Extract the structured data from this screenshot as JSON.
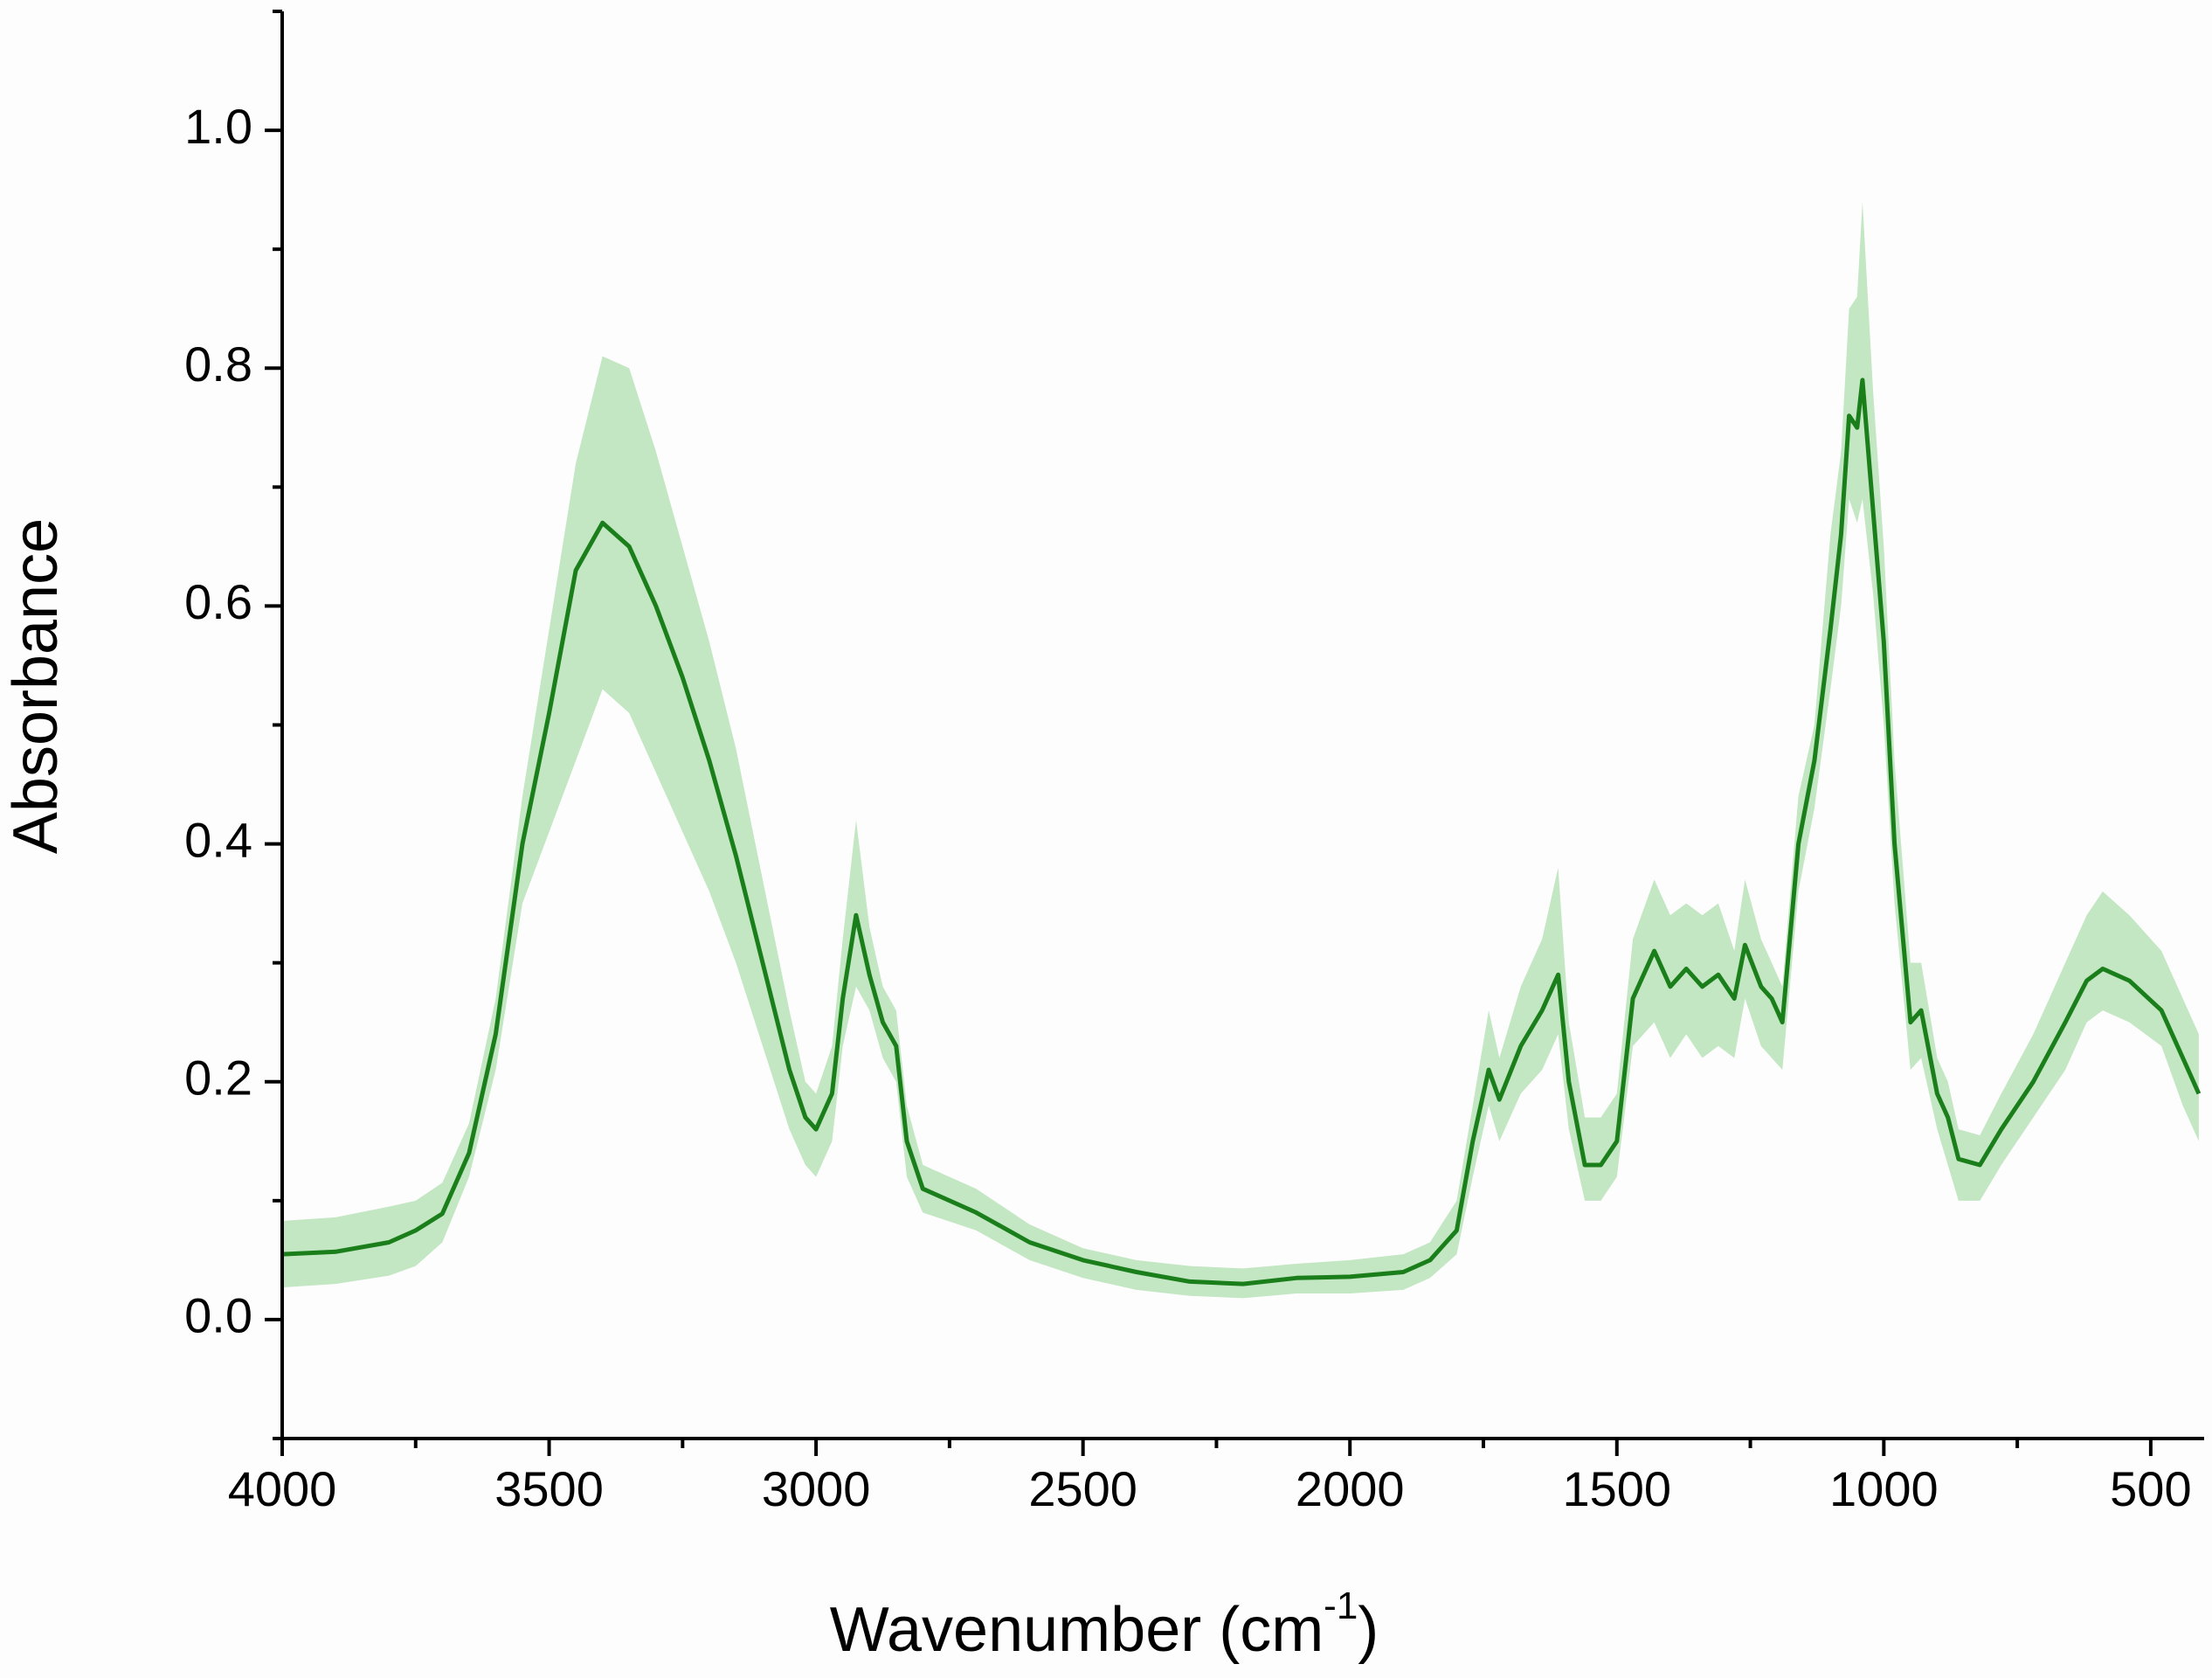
{
  "chart_data": {
    "type": "line",
    "x_label": [
      "Wavenumber (cm",
      "-1",
      ")"
    ],
    "y_label": "Absorbance",
    "xlim": [
      4000,
      400
    ],
    "ylim": [
      -0.1,
      1.1
    ],
    "xticks": [
      4000,
      3500,
      3000,
      2500,
      2000,
      1500,
      1000,
      500
    ],
    "xminor_ticks": [
      3750,
      3250,
      2750,
      2250,
      1750,
      1250,
      750
    ],
    "yticks": [
      {
        "value": 0,
        "label": "0.0"
      },
      0.2,
      0.4,
      0.6,
      0.8,
      {
        "value": 1,
        "label": "1.0"
      }
    ],
    "yminor_ticks": [
      -0.1,
      0.1,
      0.3,
      0.5,
      0.7,
      0.9,
      1.1
    ],
    "grid": false,
    "x": [
      4000,
      3900,
      3800,
      3750,
      3700,
      3650,
      3600,
      3550,
      3500,
      3450,
      3400,
      3350,
      3300,
      3250,
      3200,
      3150,
      3100,
      3050,
      3020,
      3000,
      2970,
      2950,
      2925,
      2900,
      2875,
      2850,
      2830,
      2800,
      2700,
      2600,
      2500,
      2400,
      2300,
      2200,
      2100,
      2000,
      1900,
      1850,
      1800,
      1770,
      1740,
      1720,
      1680,
      1640,
      1610,
      1590,
      1560,
      1530,
      1500,
      1470,
      1430,
      1400,
      1370,
      1340,
      1310,
      1280,
      1260,
      1230,
      1210,
      1190,
      1160,
      1130,
      1100,
      1080,
      1065,
      1050,
      1040,
      1020,
      1000,
      980,
      950,
      930,
      900,
      880,
      860,
      820,
      780,
      720,
      660,
      620,
      590,
      540,
      480,
      440,
      410
    ],
    "series": [
      {
        "color": "#1a7f1a",
        "band_color": "#c3e6c3",
        "values": [
          0.055,
          0.057,
          0.065,
          0.075,
          0.089,
          0.14,
          0.24,
          0.4,
          0.51,
          0.63,
          0.67,
          0.65,
          0.6,
          0.54,
          0.47,
          0.39,
          0.3,
          0.21,
          0.17,
          0.16,
          0.19,
          0.27,
          0.34,
          0.29,
          0.25,
          0.23,
          0.15,
          0.11,
          0.09,
          0.065,
          0.05,
          0.04,
          0.032,
          0.03,
          0.035,
          0.036,
          0.04,
          0.05,
          0.075,
          0.15,
          0.21,
          0.185,
          0.23,
          0.26,
          0.29,
          0.2,
          0.13,
          0.13,
          0.15,
          0.27,
          0.31,
          0.28,
          0.295,
          0.28,
          0.29,
          0.27,
          0.315,
          0.28,
          0.27,
          0.25,
          0.4,
          0.47,
          0.58,
          0.66,
          0.76,
          0.75,
          0.79,
          0.68,
          0.57,
          0.4,
          0.25,
          0.26,
          0.19,
          0.17,
          0.135,
          0.13,
          0.16,
          0.2,
          0.25,
          0.285,
          0.295,
          0.285,
          0.26,
          0.22,
          0.19
        ],
        "upper": [
          0.083,
          0.086,
          0.095,
          0.1,
          0.115,
          0.165,
          0.27,
          0.44,
          0.58,
          0.72,
          0.81,
          0.8,
          0.73,
          0.65,
          0.57,
          0.48,
          0.37,
          0.26,
          0.2,
          0.19,
          0.23,
          0.32,
          0.42,
          0.33,
          0.28,
          0.26,
          0.18,
          0.13,
          0.11,
          0.08,
          0.06,
          0.05,
          0.045,
          0.043,
          0.047,
          0.05,
          0.055,
          0.065,
          0.1,
          0.18,
          0.26,
          0.22,
          0.28,
          0.32,
          0.38,
          0.25,
          0.17,
          0.17,
          0.19,
          0.32,
          0.37,
          0.34,
          0.35,
          0.34,
          0.35,
          0.31,
          0.37,
          0.32,
          0.3,
          0.28,
          0.44,
          0.5,
          0.66,
          0.73,
          0.85,
          0.86,
          0.94,
          0.78,
          0.65,
          0.47,
          0.3,
          0.3,
          0.22,
          0.2,
          0.16,
          0.155,
          0.19,
          0.24,
          0.3,
          0.34,
          0.36,
          0.34,
          0.31,
          0.27,
          0.24
        ],
        "lower": [
          0.027,
          0.03,
          0.037,
          0.045,
          0.065,
          0.12,
          0.21,
          0.35,
          0.41,
          0.47,
          0.53,
          0.51,
          0.46,
          0.41,
          0.36,
          0.3,
          0.23,
          0.16,
          0.13,
          0.12,
          0.15,
          0.23,
          0.28,
          0.26,
          0.22,
          0.2,
          0.12,
          0.09,
          0.075,
          0.05,
          0.035,
          0.025,
          0.02,
          0.018,
          0.022,
          0.022,
          0.025,
          0.035,
          0.055,
          0.12,
          0.18,
          0.15,
          0.19,
          0.21,
          0.24,
          0.16,
          0.1,
          0.1,
          0.12,
          0.23,
          0.25,
          0.22,
          0.24,
          0.22,
          0.23,
          0.22,
          0.27,
          0.23,
          0.22,
          0.21,
          0.36,
          0.43,
          0.53,
          0.6,
          0.69,
          0.67,
          0.69,
          0.61,
          0.5,
          0.35,
          0.21,
          0.22,
          0.16,
          0.13,
          0.1,
          0.1,
          0.13,
          0.17,
          0.21,
          0.25,
          0.26,
          0.25,
          0.23,
          0.18,
          0.15
        ]
      }
    ]
  }
}
